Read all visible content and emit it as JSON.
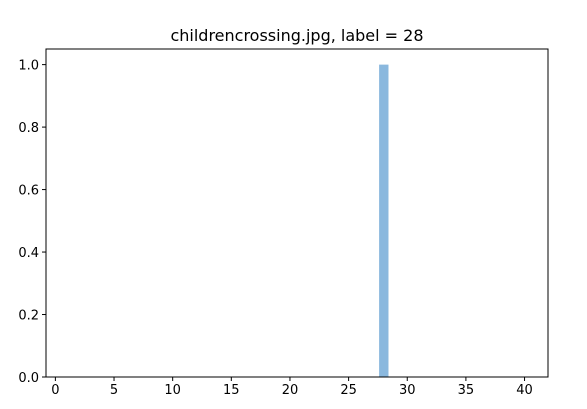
{
  "chart_data": {
    "type": "bar",
    "title": "childrencrossing.jpg, label = 28",
    "xlabel": "",
    "ylabel": "",
    "x": [
      28
    ],
    "values": [
      1.0
    ],
    "bar_width": 0.8,
    "xlim": [
      -0.8,
      42
    ],
    "ylim": [
      0,
      1.05
    ],
    "xticks": [
      0,
      5,
      10,
      15,
      20,
      25,
      30,
      35,
      40
    ],
    "yticks": [
      0.0,
      0.2,
      0.4,
      0.6,
      0.8,
      1.0
    ],
    "xtick_labels": [
      "0",
      "5",
      "10",
      "15",
      "20",
      "25",
      "30",
      "35",
      "40"
    ],
    "ytick_labels": [
      "0.0",
      "0.2",
      "0.4",
      "0.6",
      "0.8",
      "1.0"
    ],
    "grid": false,
    "bar_color": "#8ab8de"
  }
}
